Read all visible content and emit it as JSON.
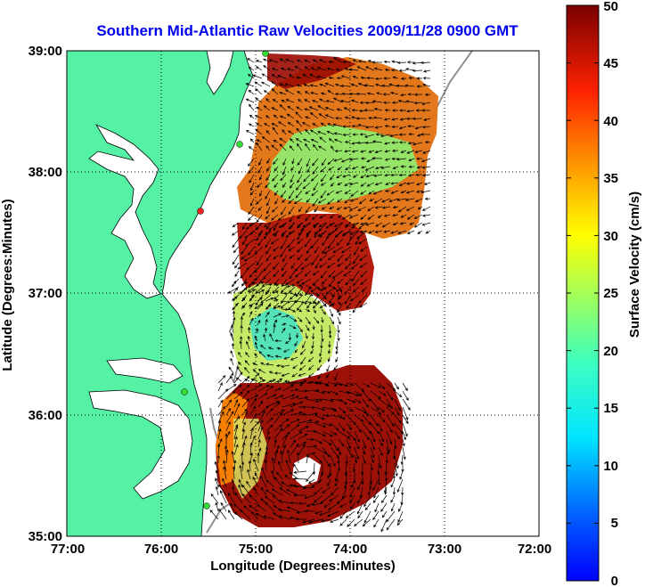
{
  "title": "Southern Mid-Atlantic Raw Velocities 2009/11/28 0900 GMT",
  "colors": {
    "title": "#0000ee",
    "land": "#55f2a6",
    "coast": "#000000",
    "bathymetry": "#909090",
    "grid": "#000000"
  },
  "map": {
    "lon_range": [
      -77,
      -72
    ],
    "lat_range": [
      35,
      39
    ],
    "xlabel": "Longitude (Degrees:Minutes)",
    "ylabel": "Latitude (Degrees:Minutes)",
    "x_ticks": [
      "77:00",
      "76:00",
      "75:00",
      "74:00",
      "73:00",
      "72:00"
    ],
    "y_ticks": [
      "39:00",
      "38:00",
      "37:00",
      "36:00",
      "35:00"
    ],
    "grid": "dotted"
  },
  "colorbar": {
    "label": "Surface Velocity (cm/s)",
    "min": 0,
    "max": 50,
    "ticks": [
      "50",
      "45",
      "40",
      "35",
      "30",
      "25",
      "20",
      "15",
      "10",
      "5",
      "0"
    ],
    "colormap": "jet"
  },
  "stations": {
    "green": "#33dd33",
    "red": "#ee2222"
  }
}
